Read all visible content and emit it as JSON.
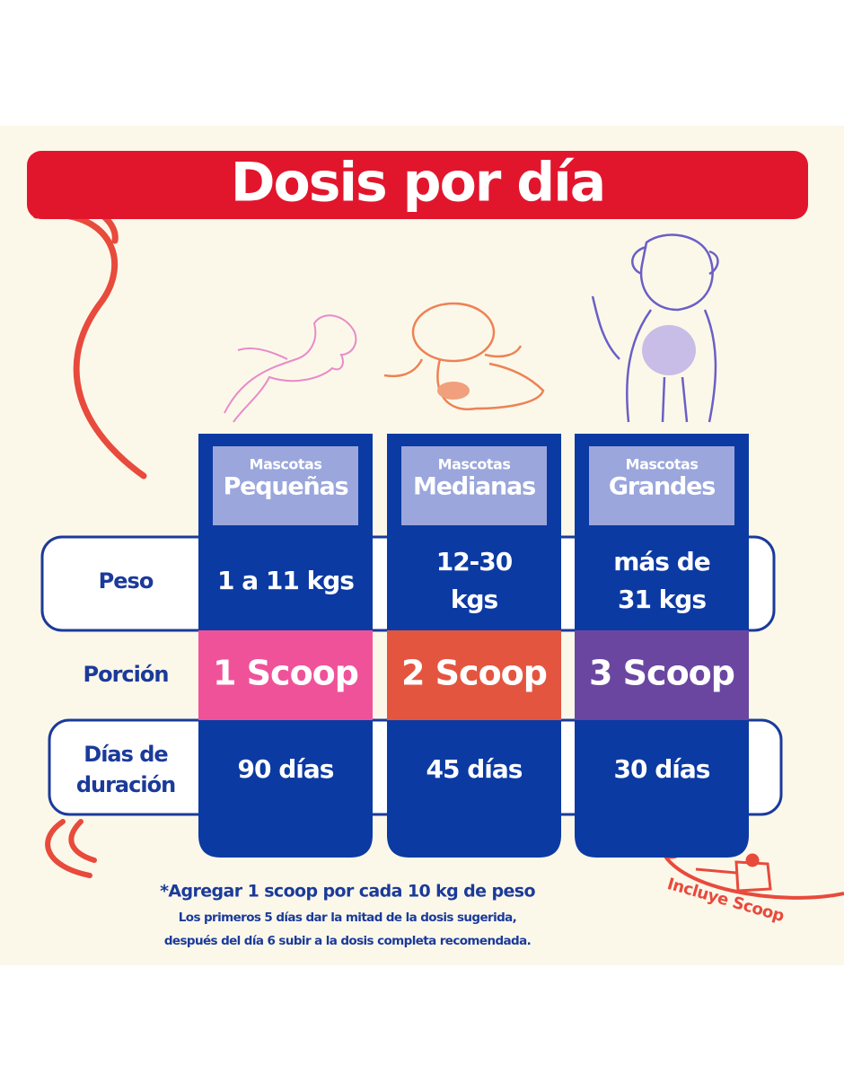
{
  "title": "Dosis por día",
  "table": {
    "columns": [
      {
        "small": "Mascotas",
        "big": "Pequeñas"
      },
      {
        "small": "Mascotas",
        "big": "Medianas"
      },
      {
        "small": "Mascotas",
        "big": "Grandes"
      }
    ],
    "rows": [
      {
        "label": [
          "Peso"
        ],
        "cells": [
          [
            "1 a 11 kgs"
          ],
          [
            "12-30",
            "kgs"
          ],
          [
            "más de",
            "31 kgs"
          ]
        ]
      },
      {
        "label": [
          "Porción"
        ],
        "cells": [
          [
            "1 Scoop"
          ],
          [
            "2 Scoop"
          ],
          [
            "3 Scoop"
          ]
        ]
      },
      {
        "label": [
          "Días de",
          "duración"
        ],
        "cells": [
          [
            "90 días"
          ],
          [
            "45 días"
          ],
          [
            "30 días"
          ]
        ]
      }
    ]
  },
  "footnote": {
    "main": "*Agregar 1 scoop por cada 10 kg de peso",
    "lines": [
      "Los primeros 5 días dar la mitad de la dosis sugerida,",
      "después del día 6 subir a la dosis completa recomendada."
    ]
  },
  "badge": "Incluye Scoop"
}
